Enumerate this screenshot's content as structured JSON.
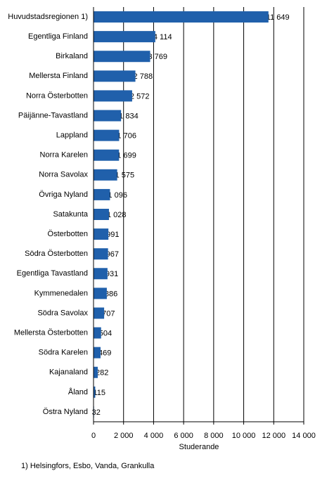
{
  "chart_data": {
    "type": "barh",
    "categories": [
      "Huvudstadsregionen 1)",
      "Egentliga Finland",
      "Birkaland",
      "Mellersta Finland",
      "Norra Österbotten",
      "Päijänne-Tavastland",
      "Lappland",
      "Norra Karelen",
      "Norra Savolax",
      "Övriga Nyland",
      "Satakunta",
      "Österbotten",
      "Södra Österbotten",
      "Egentliga Tavastland",
      "Kymmenedalen",
      "Södra Savolax",
      "Mellersta Österbotten",
      "Södra Karelen",
      "Kajanaland",
      "Åland",
      "Östra Nyland"
    ],
    "values": [
      11649,
      4114,
      3769,
      2788,
      2572,
      1834,
      1706,
      1699,
      1575,
      1096,
      1028,
      991,
      967,
      931,
      886,
      707,
      504,
      469,
      282,
      115,
      32
    ],
    "value_labels": [
      "11 649",
      "4 114",
      "3 769",
      "2 788",
      "2 572",
      "1 834",
      "1 706",
      "1 699",
      "1 575",
      "1 096",
      "1 028",
      "991",
      "967",
      "931",
      "886",
      "707",
      "504",
      "469",
      "282",
      "115",
      "32"
    ],
    "color": "#2060ab",
    "xlabel": "Studerande",
    "xlim": [
      0,
      14000
    ],
    "xticks": [
      0,
      {
        "value": 2000,
        "label": "2 000"
      },
      {
        "value": 4000,
        "label": "4 000"
      },
      {
        "value": 6000,
        "label": "6 000"
      },
      {
        "value": 8000,
        "label": "8 000"
      },
      {
        "value": 10000,
        "label": "10 000"
      },
      {
        "value": 12000,
        "label": "12 000"
      },
      {
        "value": 14000,
        "label": "14 000"
      }
    ],
    "grid": true,
    "footnote": "1) Helsingfors, Esbo, Vanda, Grankulla"
  }
}
